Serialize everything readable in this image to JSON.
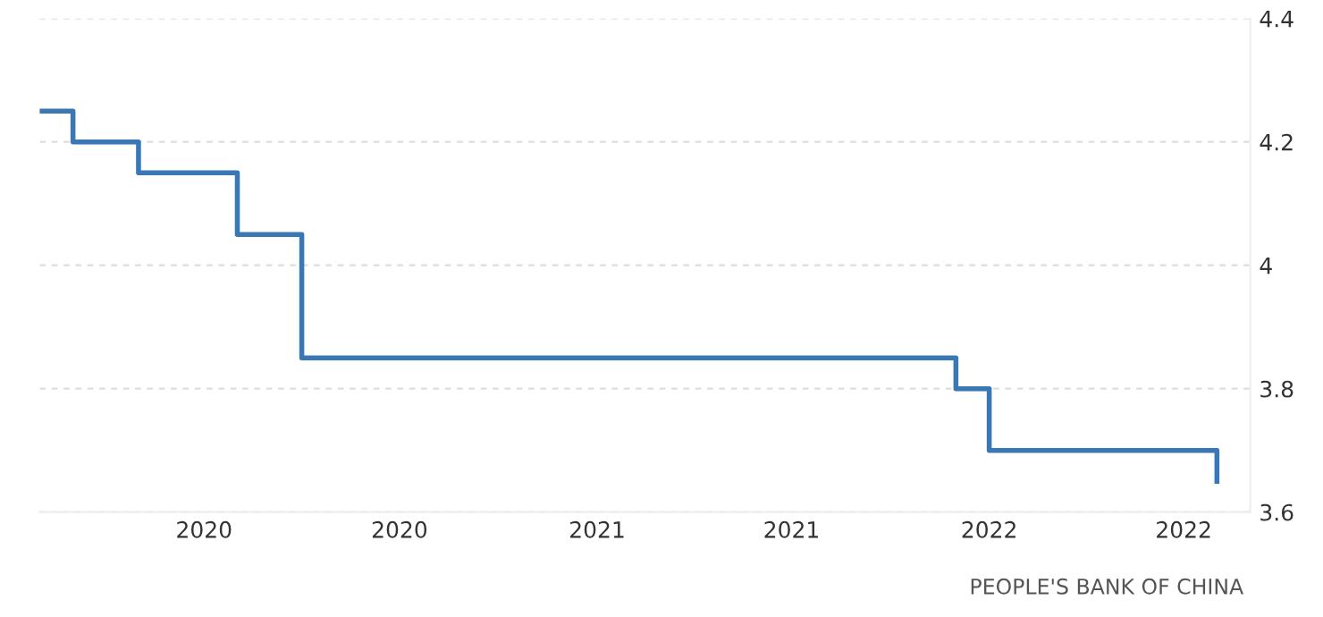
{
  "chart_data": {
    "type": "step",
    "color": "#3a78b5",
    "line_style": "solid",
    "marker": "none",
    "x": [
      "2019-08",
      "2019-09",
      "2019-11",
      "2020-02",
      "2020-04",
      "2021-12",
      "2022-01",
      "2022-08"
    ],
    "values": [
      4.25,
      4.2,
      4.15,
      4.05,
      3.85,
      3.8,
      3.7,
      3.65
    ],
    "xlim": [
      "2019-08",
      "2022-09"
    ],
    "xticks": [
      {
        "value": "2020-01",
        "label": "2020"
      },
      {
        "value": "2020-07",
        "label": "2020"
      },
      {
        "value": "2021-01",
        "label": "2021"
      },
      {
        "value": "2021-07",
        "label": "2021"
      },
      {
        "value": "2022-01",
        "label": "2022"
      },
      {
        "value": "2022-07",
        "label": "2022"
      }
    ],
    "ylim": [
      3.6,
      4.4
    ],
    "yticks": [
      3.6,
      3.8,
      4,
      4.2,
      4.4
    ],
    "grid": "y",
    "legend": false,
    "annotations": [
      "PEOPLE'S BANK OF CHINA"
    ]
  }
}
